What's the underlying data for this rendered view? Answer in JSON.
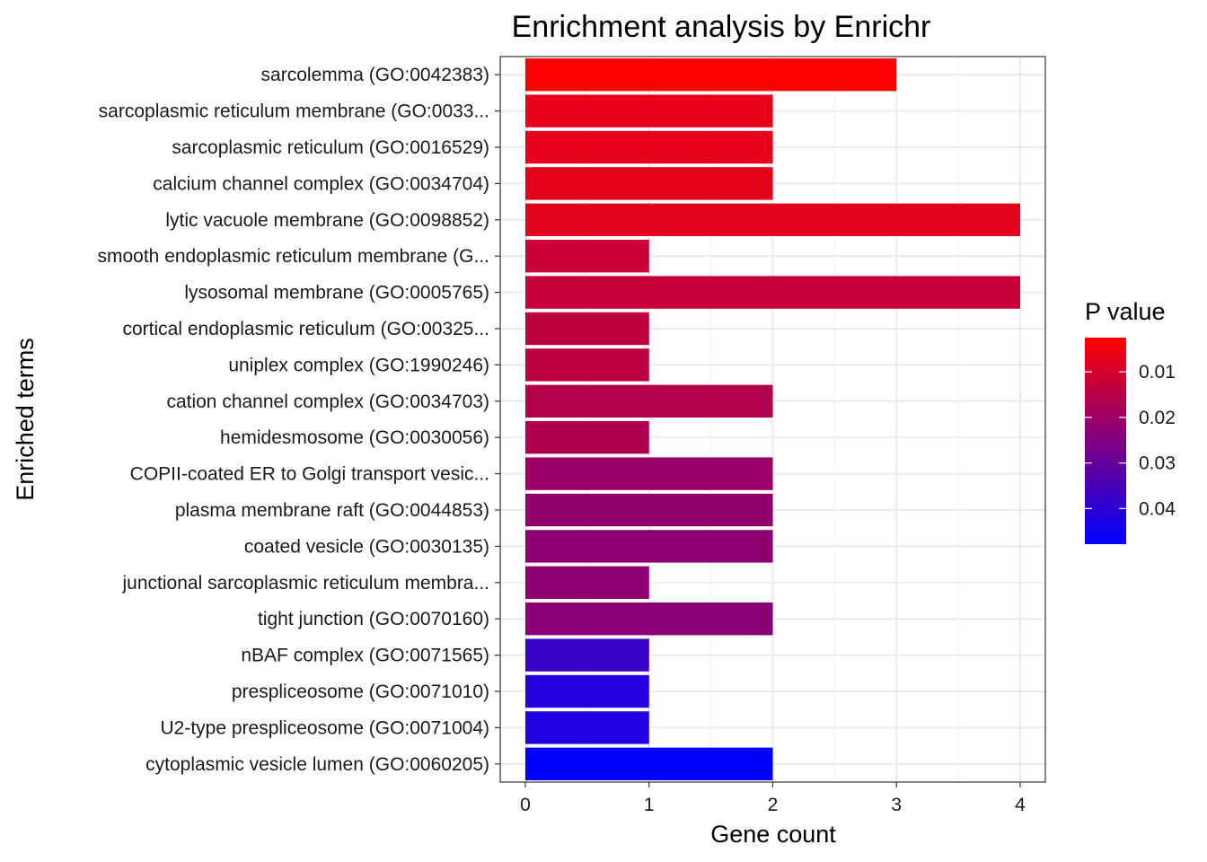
{
  "chart_data": {
    "type": "bar",
    "orientation": "horizontal",
    "title": "Enrichment analysis by Enrichr",
    "xlabel": "Gene count",
    "ylabel": "Enriched terms",
    "xlim": [
      0,
      4.2
    ],
    "x_ticks": [
      "0",
      "1",
      "2",
      "3",
      "4"
    ],
    "grid": true,
    "categories": [
      "sarcolemma (GO:0042383)",
      "sarcoplasmic reticulum membrane (GO:0033...",
      "sarcoplasmic reticulum (GO:0016529)",
      "calcium channel complex (GO:0034704)",
      "lytic vacuole membrane (GO:0098852)",
      "smooth endoplasmic reticulum membrane (G...",
      "lysosomal membrane (GO:0005765)",
      "cortical endoplasmic reticulum (GO:00325...",
      "uniplex complex (GO:1990246)",
      "cation channel complex (GO:0034703)",
      "hemidesmosome (GO:0030056)",
      "COPII-coated ER to Golgi transport vesic...",
      "plasma membrane raft (GO:0044853)",
      "coated vesicle (GO:0030135)",
      "junctional sarcoplasmic reticulum membra...",
      "tight junction (GO:0070160)",
      "nBAF complex (GO:0071565)",
      "prespliceosome (GO:0071010)",
      "U2-type prespliceosome (GO:0071004)",
      "cytoplasmic vesicle lumen (GO:0060205)"
    ],
    "values": [
      3,
      2,
      2,
      2,
      4,
      1,
      4,
      1,
      1,
      2,
      1,
      2,
      2,
      2,
      1,
      2,
      1,
      1,
      1,
      2
    ],
    "p_values": [
      0.0025,
      0.0068,
      0.007,
      0.0072,
      0.0078,
      0.0118,
      0.0128,
      0.0135,
      0.014,
      0.016,
      0.0168,
      0.0205,
      0.0215,
      0.0225,
      0.023,
      0.0232,
      0.0375,
      0.0415,
      0.0425,
      0.0478
    ],
    "legend": {
      "title": "P value",
      "placement": "right",
      "range": [
        0.0025,
        0.0478
      ],
      "ticks": [
        0.01,
        0.02,
        0.03,
        0.04
      ],
      "tick_labels": [
        "0.01",
        "0.02",
        "0.03",
        "0.04"
      ],
      "low_color": "#ff0000",
      "high_color": "#0000ff"
    }
  }
}
